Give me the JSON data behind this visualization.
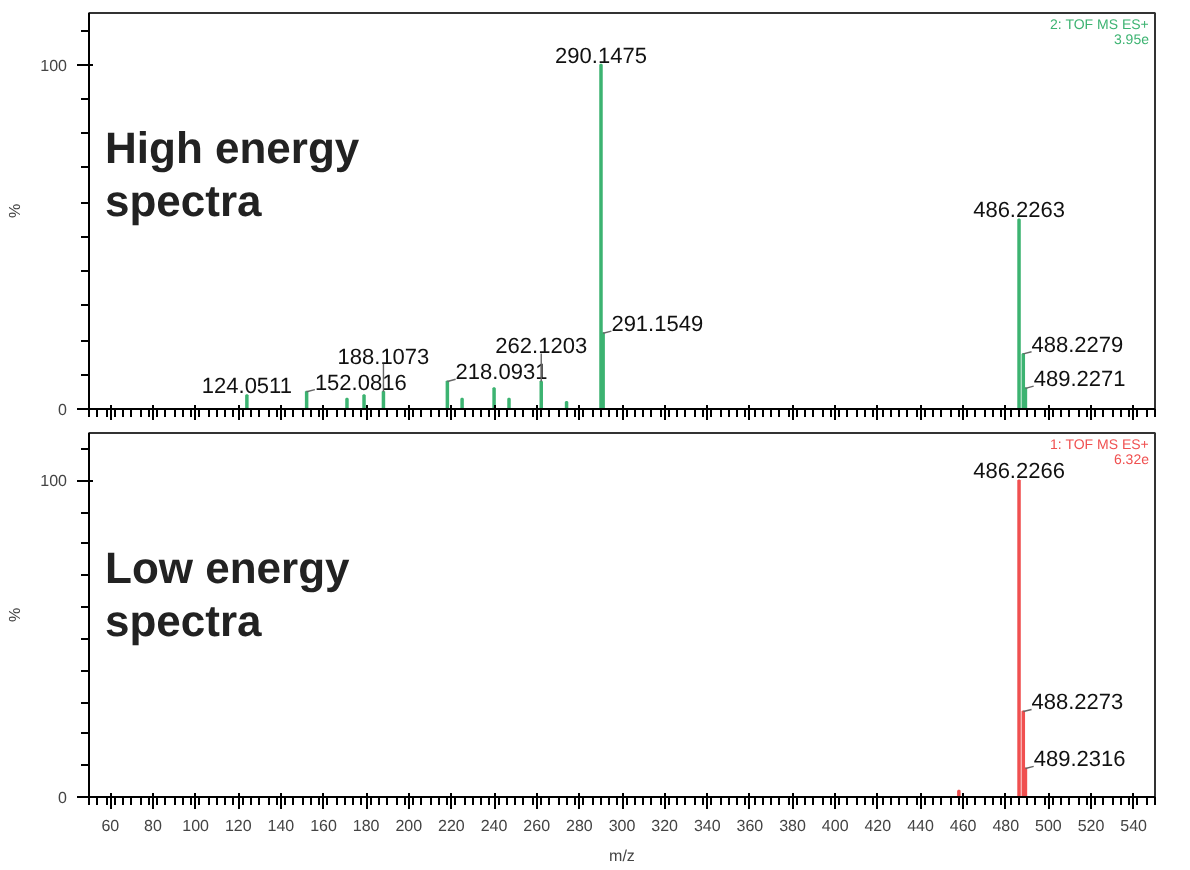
{
  "chart_data": [
    {
      "type": "bar",
      "ylabel": "%",
      "xlim": [
        50,
        550
      ],
      "xticks": [
        60,
        80,
        100,
        120,
        140,
        160,
        180,
        200,
        220,
        240,
        260,
        280,
        300,
        320,
        340,
        360,
        380,
        400,
        420,
        440,
        460,
        480,
        500,
        520,
        540
      ],
      "ylim": [
        0,
        115
      ],
      "yticks": [
        0,
        100
      ],
      "tick_labels": "y",
      "grid": false,
      "series": [
        {
          "color": "#3cb371",
          "x": [
            124.0511,
            152.0816,
            171,
            179,
            188.1073,
            218.0931,
            225,
            240,
            247,
            262.1203,
            274,
            290.1475,
            291.1549,
            486.2263,
            488.2279,
            489.2271
          ],
          "values": [
            4,
            5,
            3,
            4,
            5,
            8,
            3,
            6,
            3,
            8,
            2,
            100,
            22,
            55,
            16,
            6
          ]
        }
      ],
      "annotations": [
        "High energy\nspectra",
        "2: TOF MS ES+\n3.95e",
        {
          "text": "124.0511",
          "x": 124.0511,
          "y": 4
        },
        {
          "text": "152.0816",
          "x": 152.0816,
          "y": 5
        },
        {
          "text": "188.1073",
          "x": 188.1073,
          "y": 5
        },
        {
          "text": "218.0931",
          "x": 218.0931,
          "y": 8
        },
        {
          "text": "262.1203",
          "x": 262.1203,
          "y": 8
        },
        {
          "text": "290.1475",
          "x": 290.1475,
          "y": 100
        },
        {
          "text": "291.1549",
          "x": 291.1549,
          "y": 22
        },
        {
          "text": "486.2263",
          "x": 486.2263,
          "y": 55
        },
        {
          "text": "488.2279",
          "x": 488.2279,
          "y": 16
        },
        {
          "text": "489.2271",
          "x": 489.2271,
          "y": 6
        }
      ]
    },
    {
      "type": "bar",
      "xlabel": "m/z",
      "ylabel": "%",
      "xlim": [
        50,
        550
      ],
      "xticks": [
        60,
        80,
        100,
        120,
        140,
        160,
        180,
        200,
        220,
        240,
        260,
        280,
        300,
        320,
        340,
        360,
        380,
        400,
        420,
        440,
        460,
        480,
        500,
        520,
        540
      ],
      "ylim": [
        0,
        115
      ],
      "yticks": [
        0,
        100
      ],
      "grid": false,
      "series": [
        {
          "color": "#f05050",
          "x": [
            458,
            486.2266,
            488.2273,
            489.2316
          ],
          "values": [
            2,
            100,
            27,
            9
          ]
        }
      ],
      "annotations": [
        "Low energy\nspectra",
        "1: TOF MS ES+\n6.32e",
        {
          "text": "486.2266",
          "x": 486.2266,
          "y": 100
        },
        {
          "text": "488.2273",
          "x": 488.2273,
          "y": 27
        },
        {
          "text": "489.2316",
          "x": 489.2316,
          "y": 9
        }
      ]
    }
  ]
}
